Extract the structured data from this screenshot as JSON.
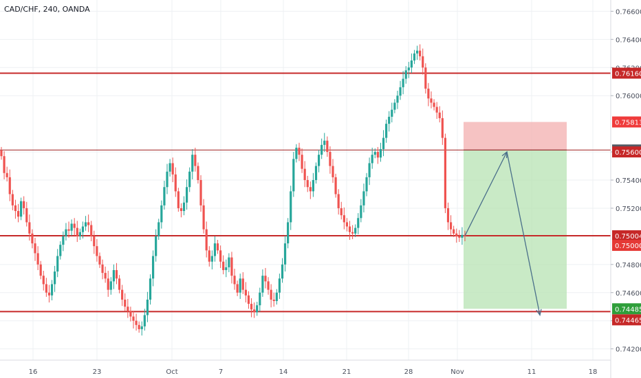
{
  "chart_data": {
    "type": "candlestick",
    "title": "CAD/CHF, 240, OANDA",
    "x_tick_labels": [
      "16",
      "23",
      "Oct",
      "7",
      "14",
      "21",
      "28",
      "Nov",
      "11",
      "18"
    ],
    "y_tick_labels": [
      "0.74200",
      "0.74400",
      "0.74600",
      "0.74800",
      "0.75200",
      "0.75400",
      "0.75600",
      "0.76000",
      "0.76200",
      "0.76400",
      "0.76600"
    ],
    "ylim": [
      0.7412,
      0.7668
    ],
    "horizontal_levels": [
      {
        "value": 0.7616,
        "label": "0.76160",
        "color": "#c62828"
      },
      {
        "value": 0.75614,
        "label": "0.75614",
        "color": "#9e1b1b"
      },
      {
        "value": 0.75004,
        "label": "0.75004",
        "color": "#c62828"
      },
      {
        "value": 0.74465,
        "label": "0.74465",
        "color": "#c62828"
      }
    ],
    "position_tool": {
      "stop_loss": 0.75813,
      "entry": 0.75614,
      "take_profit": 0.74485,
      "stop_label": "0.75813",
      "entry_label": "0.75614",
      "target_label": "0.74485",
      "current_price_label": "0.75000"
    },
    "projected_path": [
      0.75004,
      0.756,
      0.7444
    ],
    "price_series": [
      0.7557,
      0.7545,
      0.7542,
      0.753,
      0.7522,
      0.7518,
      0.7514,
      0.7525,
      0.752,
      0.751,
      0.7502,
      0.7495,
      0.7488,
      0.748,
      0.7472,
      0.7466,
      0.746,
      0.7458,
      0.7466,
      0.7475,
      0.7486,
      0.7494,
      0.75,
      0.7505,
      0.7504,
      0.7509,
      0.7506,
      0.75,
      0.7503,
      0.7507,
      0.751,
      0.7508,
      0.75,
      0.7493,
      0.7486,
      0.748,
      0.7474,
      0.747,
      0.7462,
      0.7468,
      0.7476,
      0.747,
      0.7462,
      0.7455,
      0.745,
      0.7447,
      0.7443,
      0.744,
      0.7437,
      0.7434,
      0.7436,
      0.7444,
      0.7455,
      0.747,
      0.7486,
      0.75,
      0.751,
      0.7522,
      0.7535,
      0.7546,
      0.7552,
      0.7544,
      0.7532,
      0.752,
      0.7518,
      0.7524,
      0.7535,
      0.7546,
      0.7558,
      0.755,
      0.754,
      0.7522,
      0.7505,
      0.749,
      0.7482,
      0.7486,
      0.7495,
      0.749,
      0.7482,
      0.7476,
      0.7478,
      0.7485,
      0.7472,
      0.7466,
      0.746,
      0.747,
      0.7462,
      0.7458,
      0.7452,
      0.7448,
      0.7446,
      0.7451,
      0.746,
      0.7472,
      0.7468,
      0.7462,
      0.7455,
      0.7454,
      0.746,
      0.747,
      0.748,
      0.7495,
      0.751,
      0.7532,
      0.7555,
      0.7563,
      0.7558,
      0.7548,
      0.754,
      0.7535,
      0.7532,
      0.754,
      0.755,
      0.7558,
      0.7565,
      0.7568,
      0.756,
      0.755,
      0.7542,
      0.753,
      0.752,
      0.7515,
      0.751,
      0.7507,
      0.7503,
      0.7502,
      0.7506,
      0.7513,
      0.7522,
      0.7532,
      0.7542,
      0.7552,
      0.7558,
      0.756,
      0.7556,
      0.7562,
      0.757,
      0.758,
      0.7585,
      0.759,
      0.7595,
      0.76,
      0.7606,
      0.7612,
      0.7618,
      0.762,
      0.7625,
      0.763,
      0.7632,
      0.7628,
      0.762,
      0.7605,
      0.7598,
      0.7595,
      0.7592,
      0.7588,
      0.7584,
      0.757,
      0.752,
      0.751,
      0.7505,
      0.7502,
      0.75,
      0.7499,
      0.7501,
      0.75
    ]
  }
}
